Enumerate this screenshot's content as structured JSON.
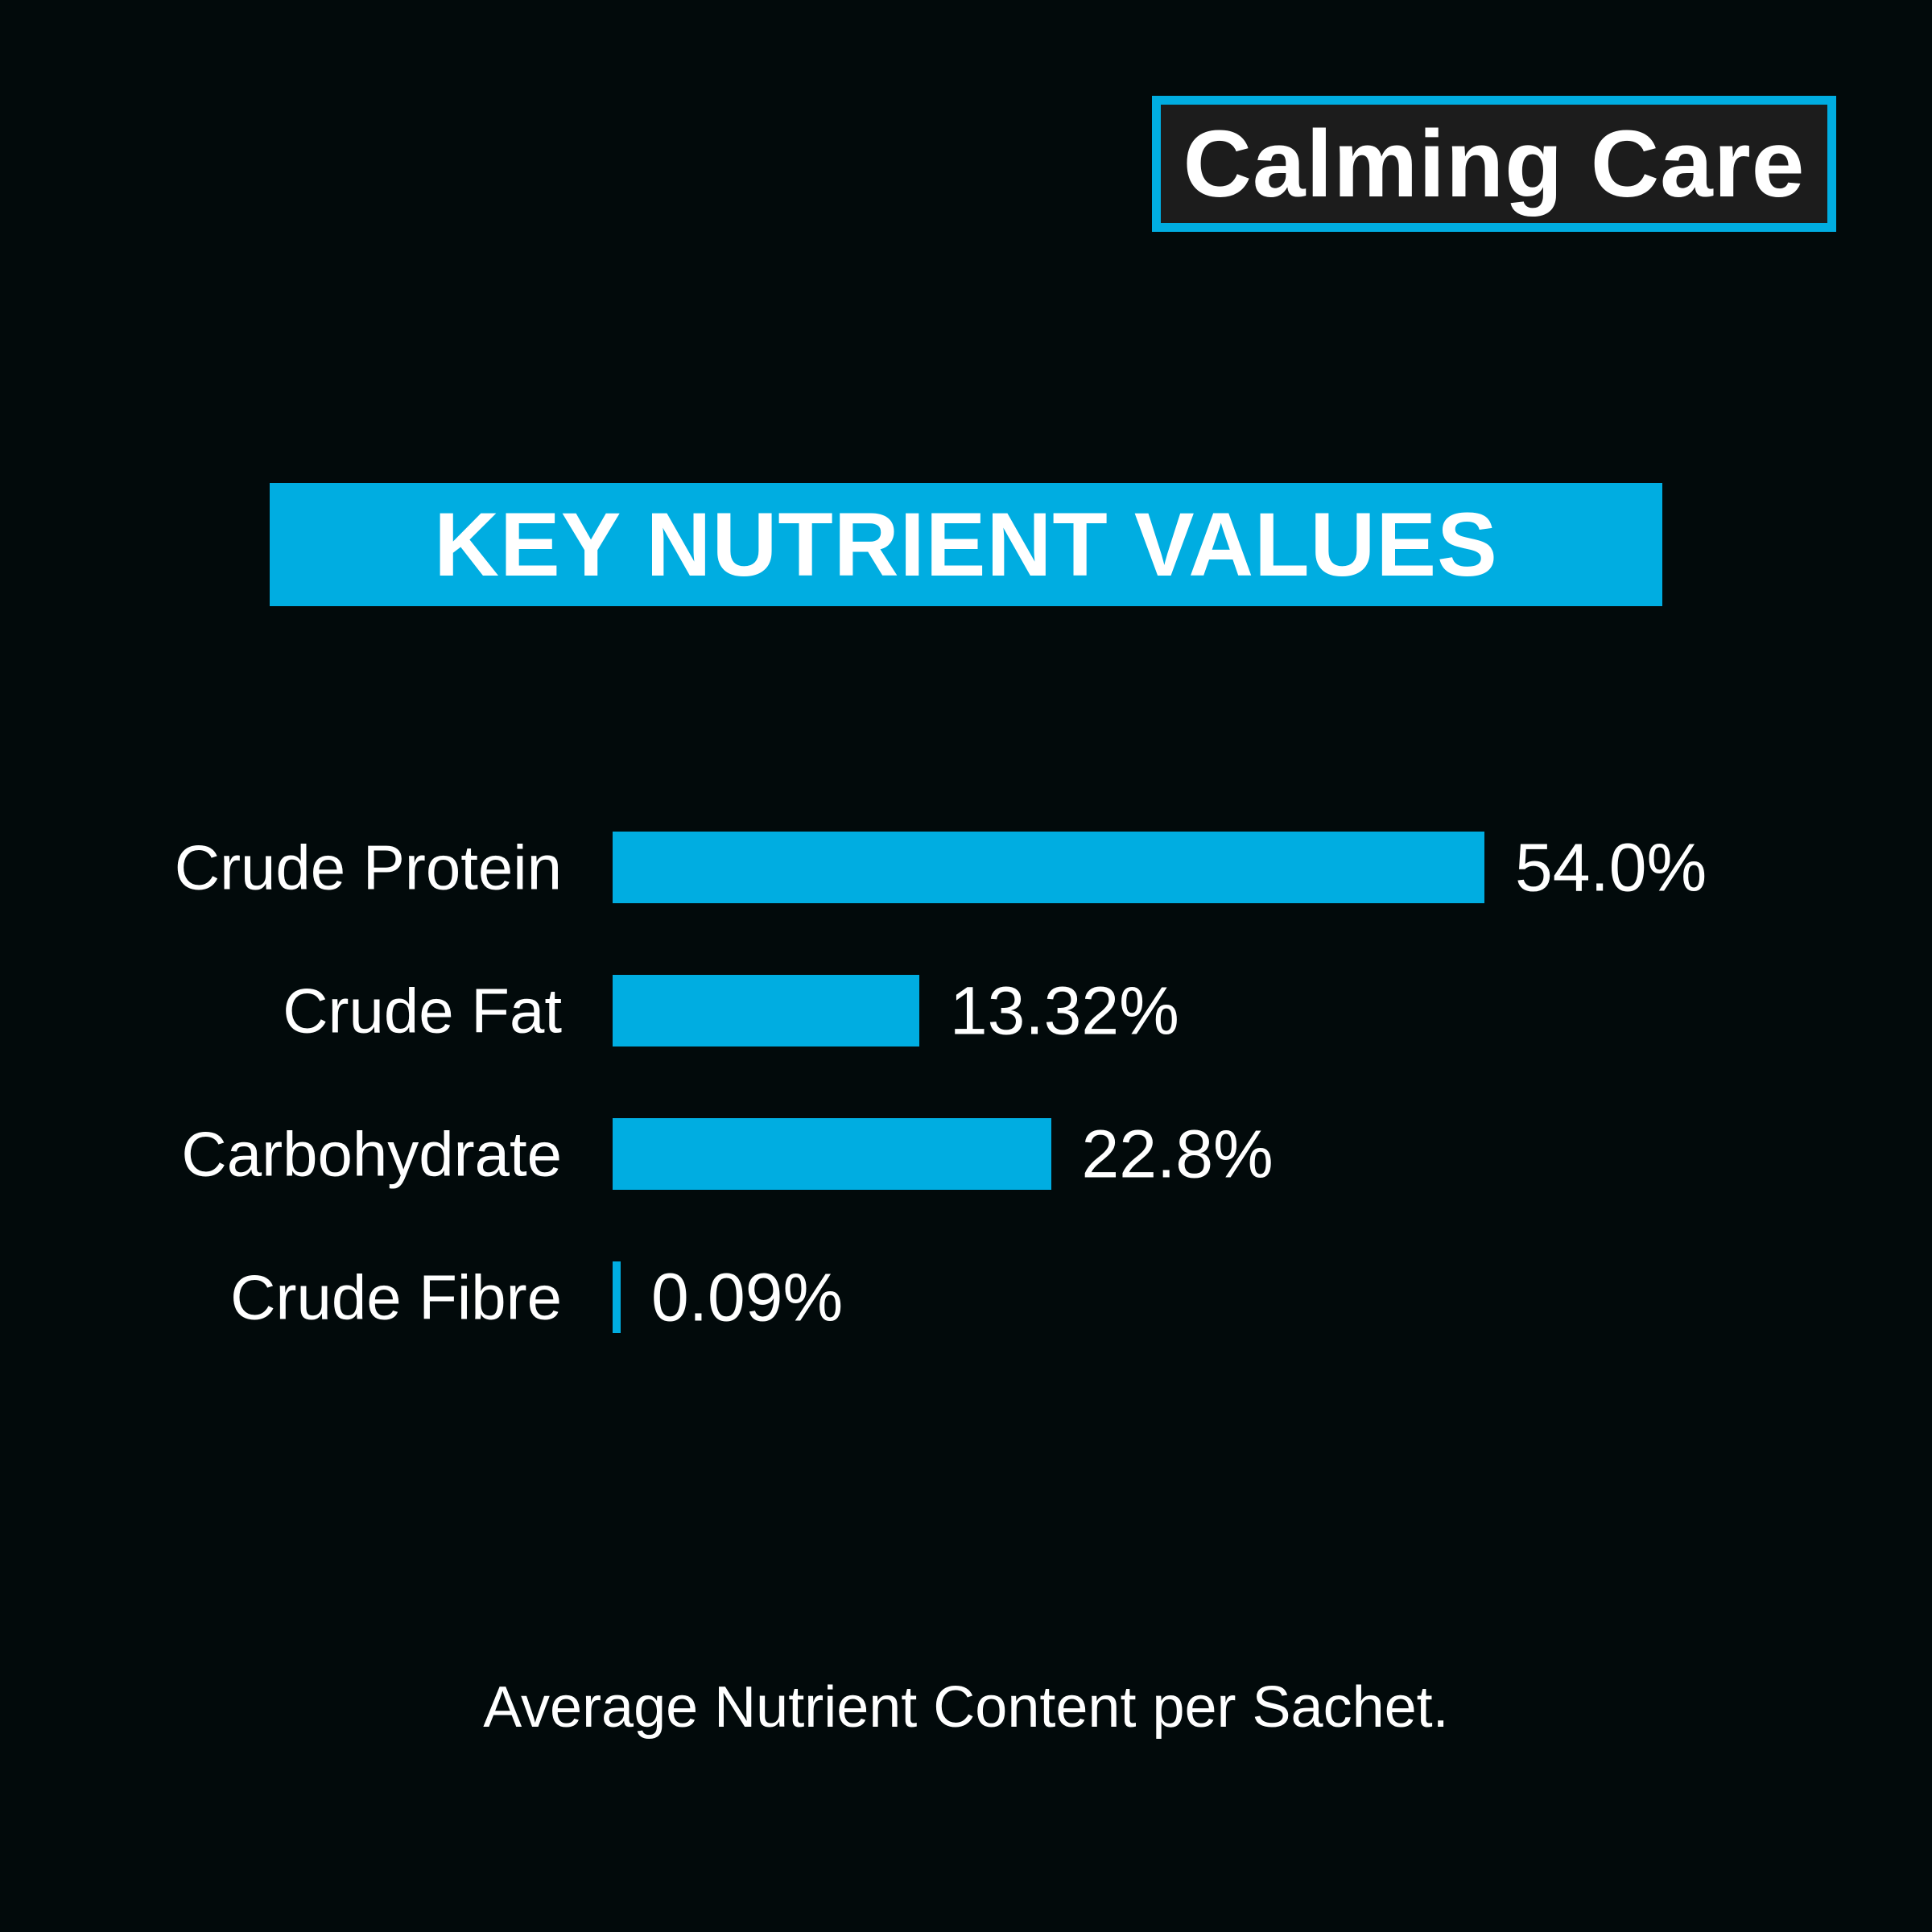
{
  "brand": {
    "title": "Calming Care"
  },
  "banner": {
    "title": "KEY NUTRIENT VALUES"
  },
  "colors": {
    "accent": "#00ade1",
    "background": "#020a0b",
    "brand_box": "#1c1c1c",
    "text": "#ffffff"
  },
  "chart_data": {
    "type": "bar",
    "orientation": "horizontal",
    "title": "KEY NUTRIENT VALUES",
    "categories": [
      "Crude Protein",
      "Crude Fat",
      "Carbohydrate",
      "Crude Fibre"
    ],
    "values": [
      54.0,
      13.32,
      22.8,
      0.09
    ],
    "value_labels": [
      "54.0%",
      "13.32%",
      "22.8%",
      "0.09%"
    ],
    "unit": "%",
    "grid": false,
    "axes_visible": false
  },
  "footer": {
    "note": "Average Nutrient Content per Sachet."
  }
}
